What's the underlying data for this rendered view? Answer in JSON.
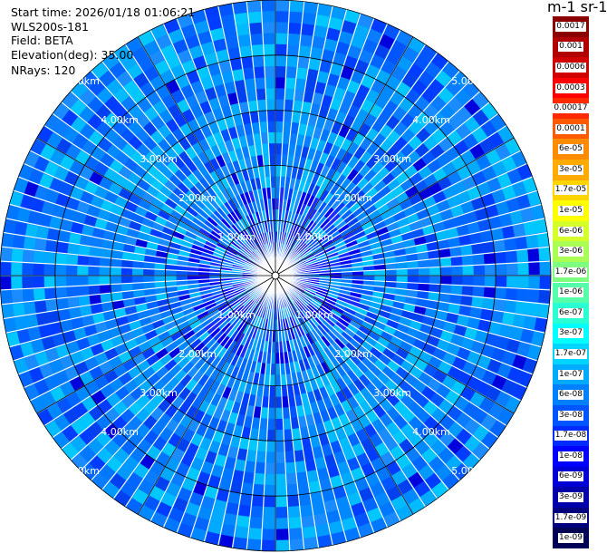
{
  "header": {
    "start_time": "Start time: 2026/01/18 01:06:21",
    "instrument": "WLS200s-181",
    "field": "Field: BETA",
    "elevation": "Elevation(deg): 35.00",
    "nrays": "NRays: 120"
  },
  "colorbar": {
    "title": "m-1 sr-1",
    "levels": [
      {
        "label": "0.0017",
        "color": "#8b0000"
      },
      {
        "label": "0.001",
        "color": "#b00000"
      },
      {
        "label": "0.0006",
        "color": "#d00000"
      },
      {
        "label": "0.0003",
        "color": "#ff0000"
      },
      {
        "label": "0.00017",
        "color": "#ff2a00"
      },
      {
        "label": "0.0001",
        "color": "#ff5a00"
      },
      {
        "label": "6e-05",
        "color": "#ff8c00"
      },
      {
        "label": "3e-05",
        "color": "#ffaa00"
      },
      {
        "label": "1.7e-05",
        "color": "#ffd400"
      },
      {
        "label": "1e-05",
        "color": "#ffff00"
      },
      {
        "label": "6e-06",
        "color": "#d4ff2a"
      },
      {
        "label": "3e-06",
        "color": "#aaff55"
      },
      {
        "label": "1.7e-06",
        "color": "#7fff7f"
      },
      {
        "label": "1e-06",
        "color": "#55ffaa"
      },
      {
        "label": "6e-07",
        "color": "#2affd4"
      },
      {
        "label": "3e-07",
        "color": "#00ffff"
      },
      {
        "label": "1.7e-07",
        "color": "#00d4ff"
      },
      {
        "label": "1e-07",
        "color": "#00aaff"
      },
      {
        "label": "6e-08",
        "color": "#0080ff"
      },
      {
        "label": "3e-08",
        "color": "#0055ff"
      },
      {
        "label": "1.7e-08",
        "color": "#002bff"
      },
      {
        "label": "1e-08",
        "color": "#0000ff"
      },
      {
        "label": "6e-09",
        "color": "#0000d4"
      },
      {
        "label": "3e-09",
        "color": "#0000aa"
      },
      {
        "label": "1.7e-09",
        "color": "#00007f"
      },
      {
        "label": "1e-09",
        "color": "#000055"
      }
    ]
  },
  "chart_data": {
    "type": "heatmap",
    "projection": "polar PPI",
    "field": "BETA",
    "units": "m-1 sr-1",
    "elevation_deg": 35.0,
    "n_rays": 120,
    "max_range_km": 5.0,
    "range_rings_km": [
      1,
      2,
      3,
      4,
      5
    ],
    "ring_labels": [
      "1.00km",
      "2.00km",
      "3.00km",
      "4.00km",
      "5.00km"
    ],
    "spoke_interval_deg": 30,
    "value_range": [
      1e-09,
      0.0017
    ],
    "dominant_range": [
      1e-08,
      1e-07
    ]
  }
}
